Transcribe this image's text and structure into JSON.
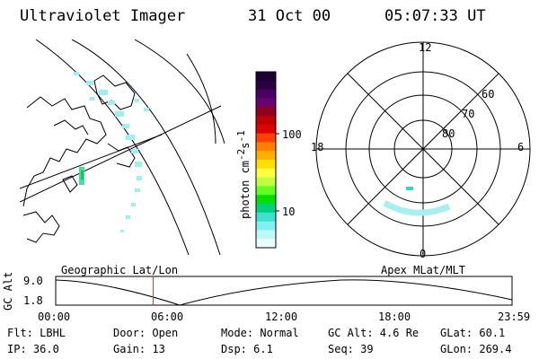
{
  "header": {
    "title": "Ultraviolet Imager",
    "date": "31 Oct 00",
    "time": "05:07:33 UT"
  },
  "colorbar": {
    "unit_label": "photon cm",
    "unit_sup1": "-2",
    "unit_mid": "s",
    "unit_sup2": "-1",
    "tick_high": "100",
    "tick_low": "10",
    "colors": [
      "#1a0033",
      "#2a0040",
      "#4a0060",
      "#6a0070",
      "#900020",
      "#c00000",
      "#e00000",
      "#ff4000",
      "#ff8000",
      "#ffb000",
      "#ffe000",
      "#ffff40",
      "#c0ff40",
      "#60ff20",
      "#00e000",
      "#00d080",
      "#40e0d0",
      "#80f0f0",
      "#c0f8f8",
      "#e8ffff"
    ]
  },
  "polar": {
    "mlt_top": "12",
    "mlt_bottom": "0",
    "mlt_left": "18",
    "mlt_right": "6",
    "lat_60": "60",
    "lat_70": "70",
    "lat_80": "80"
  },
  "timeline": {
    "left_label": "Geographic Lat/Lon",
    "right_label": "Apex MLat/MLT",
    "axis_title": "GC Alt",
    "y_high": "9.0",
    "y_low": "1.8",
    "ticks": [
      "00:00",
      "06:00",
      "12:00",
      "18:00",
      "23:59"
    ],
    "current_time_fraction": 0.2135
  },
  "status": {
    "flt": "Flt: LBHL",
    "ip": "IP: 36.0",
    "door": "Door: Open",
    "gain": "Gain: 13",
    "mode": "Mode: Normal",
    "dsp": "Dsp:    6.1",
    "gcalt": "GC Alt: 4.6 Re",
    "seq": "Seq: 39",
    "glat": "GLat:  60.1",
    "glon": "GLon: 269.4"
  }
}
